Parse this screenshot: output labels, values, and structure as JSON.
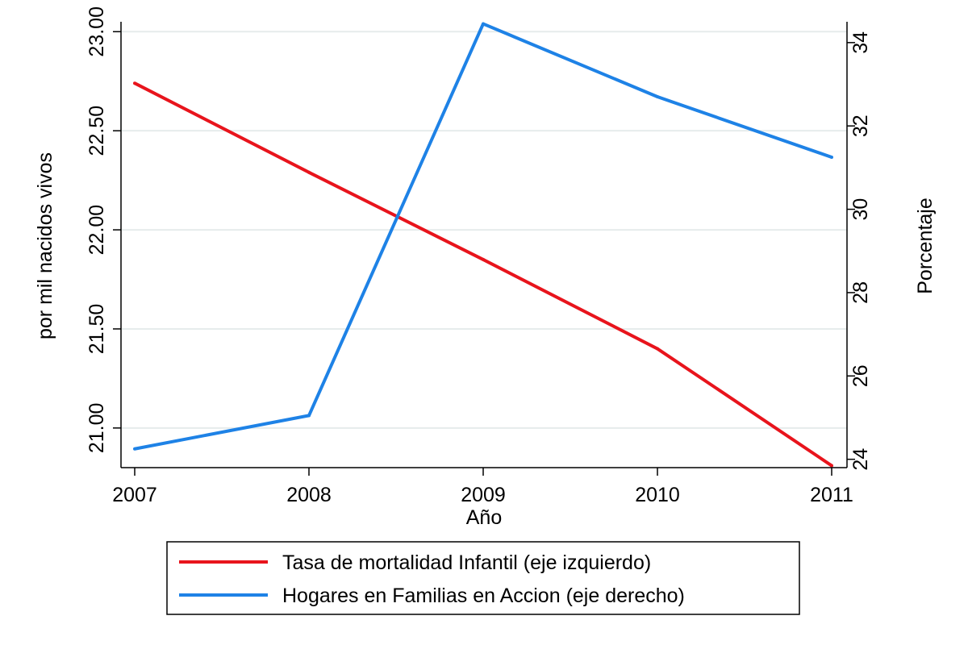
{
  "chart_data": {
    "type": "line",
    "x": [
      2007,
      2008,
      2009,
      2010,
      2011
    ],
    "xlabel": "Año",
    "ylabel_left": "por mil nacidos vivos",
    "ylabel_right": "Porcentaje",
    "y_left_ticks": [
      "23.00",
      "22.50",
      "22.00",
      "21.50",
      "21.00"
    ],
    "y_left_tick_values": [
      23.0,
      22.5,
      22.0,
      21.5,
      21.0
    ],
    "y_right_ticks": [
      "34",
      "32",
      "30",
      "28",
      "26",
      "24"
    ],
    "y_right_tick_values": [
      34,
      32,
      30,
      28,
      26,
      24
    ],
    "ylim_left": [
      20.8,
      23.05
    ],
    "ylim_right": [
      23.8,
      34.5
    ],
    "x_ticks": [
      "2007",
      "2008",
      "2009",
      "2010",
      "2011"
    ],
    "grid": true,
    "legend_position": "bottom",
    "series": [
      {
        "name": "Tasa de mortalidad Infantil (eje izquierdo)",
        "axis": "left",
        "color": "#e8141c",
        "values": [
          22.74,
          22.29,
          21.85,
          21.4,
          20.81
        ]
      },
      {
        "name": "Hogares en Familias en Accion (eje derecho)",
        "axis": "right",
        "color": "#1e82e6",
        "values": [
          24.25,
          25.05,
          34.45,
          32.7,
          31.25
        ]
      }
    ]
  }
}
